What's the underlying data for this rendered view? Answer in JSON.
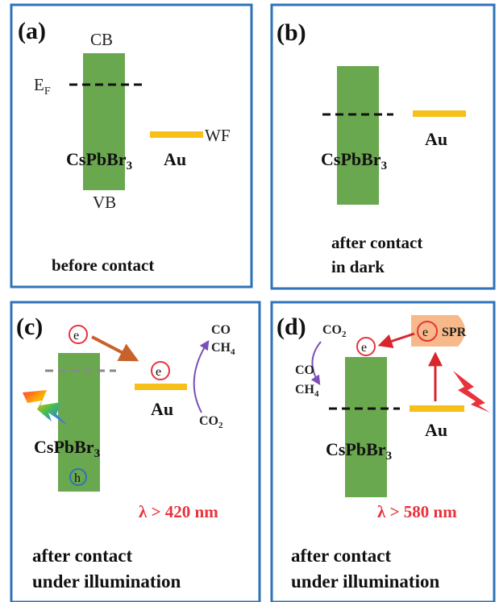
{
  "panels": {
    "a": {
      "label": "(a)",
      "cb": "CB",
      "vb": "VB",
      "ef": "E",
      "ef_sub": "F",
      "wf": "WF",
      "material": "CsPbBr",
      "material_sub": "3",
      "au": "Au",
      "caption": "before contact"
    },
    "b": {
      "label": "(b)",
      "material": "CsPbBr",
      "material_sub": "3",
      "au": "Au",
      "caption_line1": "after contact",
      "caption_line2": "in dark"
    },
    "c": {
      "label": "(c)",
      "electron": "e",
      "hole": "h",
      "au_electron": "e",
      "co": "CO",
      "ch4": "CH",
      "ch4_sub": "4",
      "co2": "CO",
      "co2_sub": "2",
      "material": "CsPbBr",
      "material_sub": "3",
      "au": "Au",
      "wavelength": "λ > 420 nm",
      "caption_line1": "after contact",
      "caption_line2": "under illumination"
    },
    "d": {
      "label": "(d)",
      "co2": "CO",
      "co2_sub": "2",
      "electron": "e",
      "spr_electron": "e",
      "spr": "SPR",
      "co": "CO",
      "ch4": "CH",
      "ch4_sub": "4",
      "material": "CsPbBr",
      "material_sub": "3",
      "au": "Au",
      "wavelength": "λ > 580 nm",
      "caption_line1": "after contact",
      "caption_line2": "under illumination"
    }
  },
  "colors": {
    "frame": "#2f72b8",
    "semiconductor": "#6aa84f",
    "gold": "#f6c018",
    "accent_red": "#e8323c",
    "arrow_orange": "#c8622a",
    "arrow_purple": "#7b4fb8",
    "spr_fill": "#f7b98a"
  }
}
